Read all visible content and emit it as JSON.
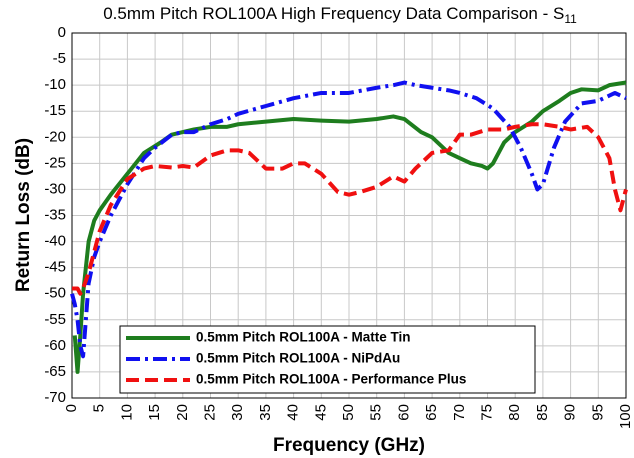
{
  "chart_data": {
    "type": "line",
    "title": "0.5mm Pitch ROL100A High Frequency Data Comparison - S",
    "title_subscript": "11",
    "x_label": "Frequency (GHz)",
    "y_label": "Return Loss (dB)",
    "xlim": [
      0,
      100
    ],
    "ylim": [
      -70,
      0
    ],
    "xticks": [
      0,
      5,
      10,
      15,
      20,
      25,
      30,
      35,
      40,
      45,
      50,
      55,
      60,
      65,
      70,
      75,
      80,
      85,
      90,
      95,
      100
    ],
    "yticks": [
      0,
      -5,
      -10,
      -15,
      -20,
      -25,
      -30,
      -35,
      -40,
      -45,
      -50,
      -55,
      -60,
      -65,
      -70
    ],
    "grid": true,
    "legend": "lower left",
    "series": [
      {
        "name": "0.5mm Pitch ROL100A - Matte Tin",
        "color": "#1e7d1e",
        "style": "solid",
        "x": [
          0.5,
          1,
          1.5,
          2,
          3,
          4,
          5,
          7,
          10,
          13,
          16,
          18,
          20,
          22,
          25,
          28,
          30,
          35,
          40,
          45,
          50,
          55,
          58,
          60,
          63,
          65,
          68,
          70,
          72,
          74,
          75,
          76,
          78,
          80,
          83,
          85,
          88,
          90,
          92,
          95,
          97,
          100
        ],
        "values": [
          -58,
          -65,
          -58,
          -50,
          -40,
          -36,
          -34,
          -31,
          -27,
          -23,
          -21,
          -19.5,
          -19,
          -18.5,
          -18,
          -18,
          -17.5,
          -17,
          -16.5,
          -16.8,
          -17,
          -16.5,
          -16,
          -16.5,
          -19,
          -20,
          -23,
          -24,
          -25,
          -25.5,
          -26,
          -25,
          -21,
          -19,
          -17,
          -15,
          -13,
          -11.5,
          -10.8,
          -11,
          -10,
          -9.5
        ]
      },
      {
        "name": "0.5mm Pitch ROL100A - NiPdAu",
        "color": "#1010f0",
        "style": "dashdot",
        "x": [
          0,
          0.5,
          1,
          1.5,
          2,
          2.5,
          3,
          4,
          5,
          7,
          10,
          13,
          15,
          18,
          20,
          22,
          25,
          28,
          30,
          35,
          40,
          45,
          50,
          55,
          58,
          60,
          62,
          65,
          68,
          70,
          73,
          76,
          79,
          81,
          83,
          84,
          85,
          87,
          89,
          92,
          95,
          97,
          98,
          100
        ],
        "values": [
          -50,
          -52,
          -55,
          -60,
          -62,
          -55,
          -48,
          -43,
          -40,
          -35,
          -29,
          -24,
          -22,
          -19.5,
          -19,
          -19,
          -17.5,
          -16.5,
          -15.5,
          -14,
          -12.5,
          -11.5,
          -11.5,
          -10.5,
          -10,
          -9.5,
          -10,
          -10.5,
          -11,
          -11.5,
          -12.5,
          -14.5,
          -18,
          -22,
          -27,
          -30,
          -29,
          -22,
          -17,
          -13.5,
          -13,
          -12,
          -11.5,
          -12.5
        ]
      },
      {
        "name": "0.5mm Pitch ROL100A - Performance Plus",
        "color": "#f01010",
        "style": "dashed",
        "x": [
          0,
          1,
          1.5,
          2,
          3,
          4,
          5,
          7,
          10,
          13,
          15,
          18,
          20,
          22,
          25,
          28,
          30,
          32,
          35,
          38,
          40,
          42,
          45,
          48,
          50,
          52,
          55,
          58,
          60,
          62,
          65,
          68,
          70,
          72,
          75,
          78,
          80,
          83,
          85,
          88,
          90,
          93,
          95,
          97,
          98,
          99,
          100
        ],
        "values": [
          -49,
          -49,
          -50,
          -49,
          -46,
          -42,
          -38,
          -33,
          -28,
          -26,
          -25.5,
          -25.8,
          -25.5,
          -25.8,
          -23.5,
          -22.5,
          -22.5,
          -23,
          -26,
          -26,
          -25,
          -25,
          -27,
          -30.5,
          -31,
          -30.5,
          -29.5,
          -27.5,
          -28.5,
          -26,
          -23,
          -22.5,
          -19.5,
          -19.5,
          -18.5,
          -18.5,
          -18,
          -17.5,
          -17.5,
          -18,
          -18.5,
          -18,
          -20,
          -24,
          -30,
          -34,
          -30
        ]
      }
    ]
  }
}
